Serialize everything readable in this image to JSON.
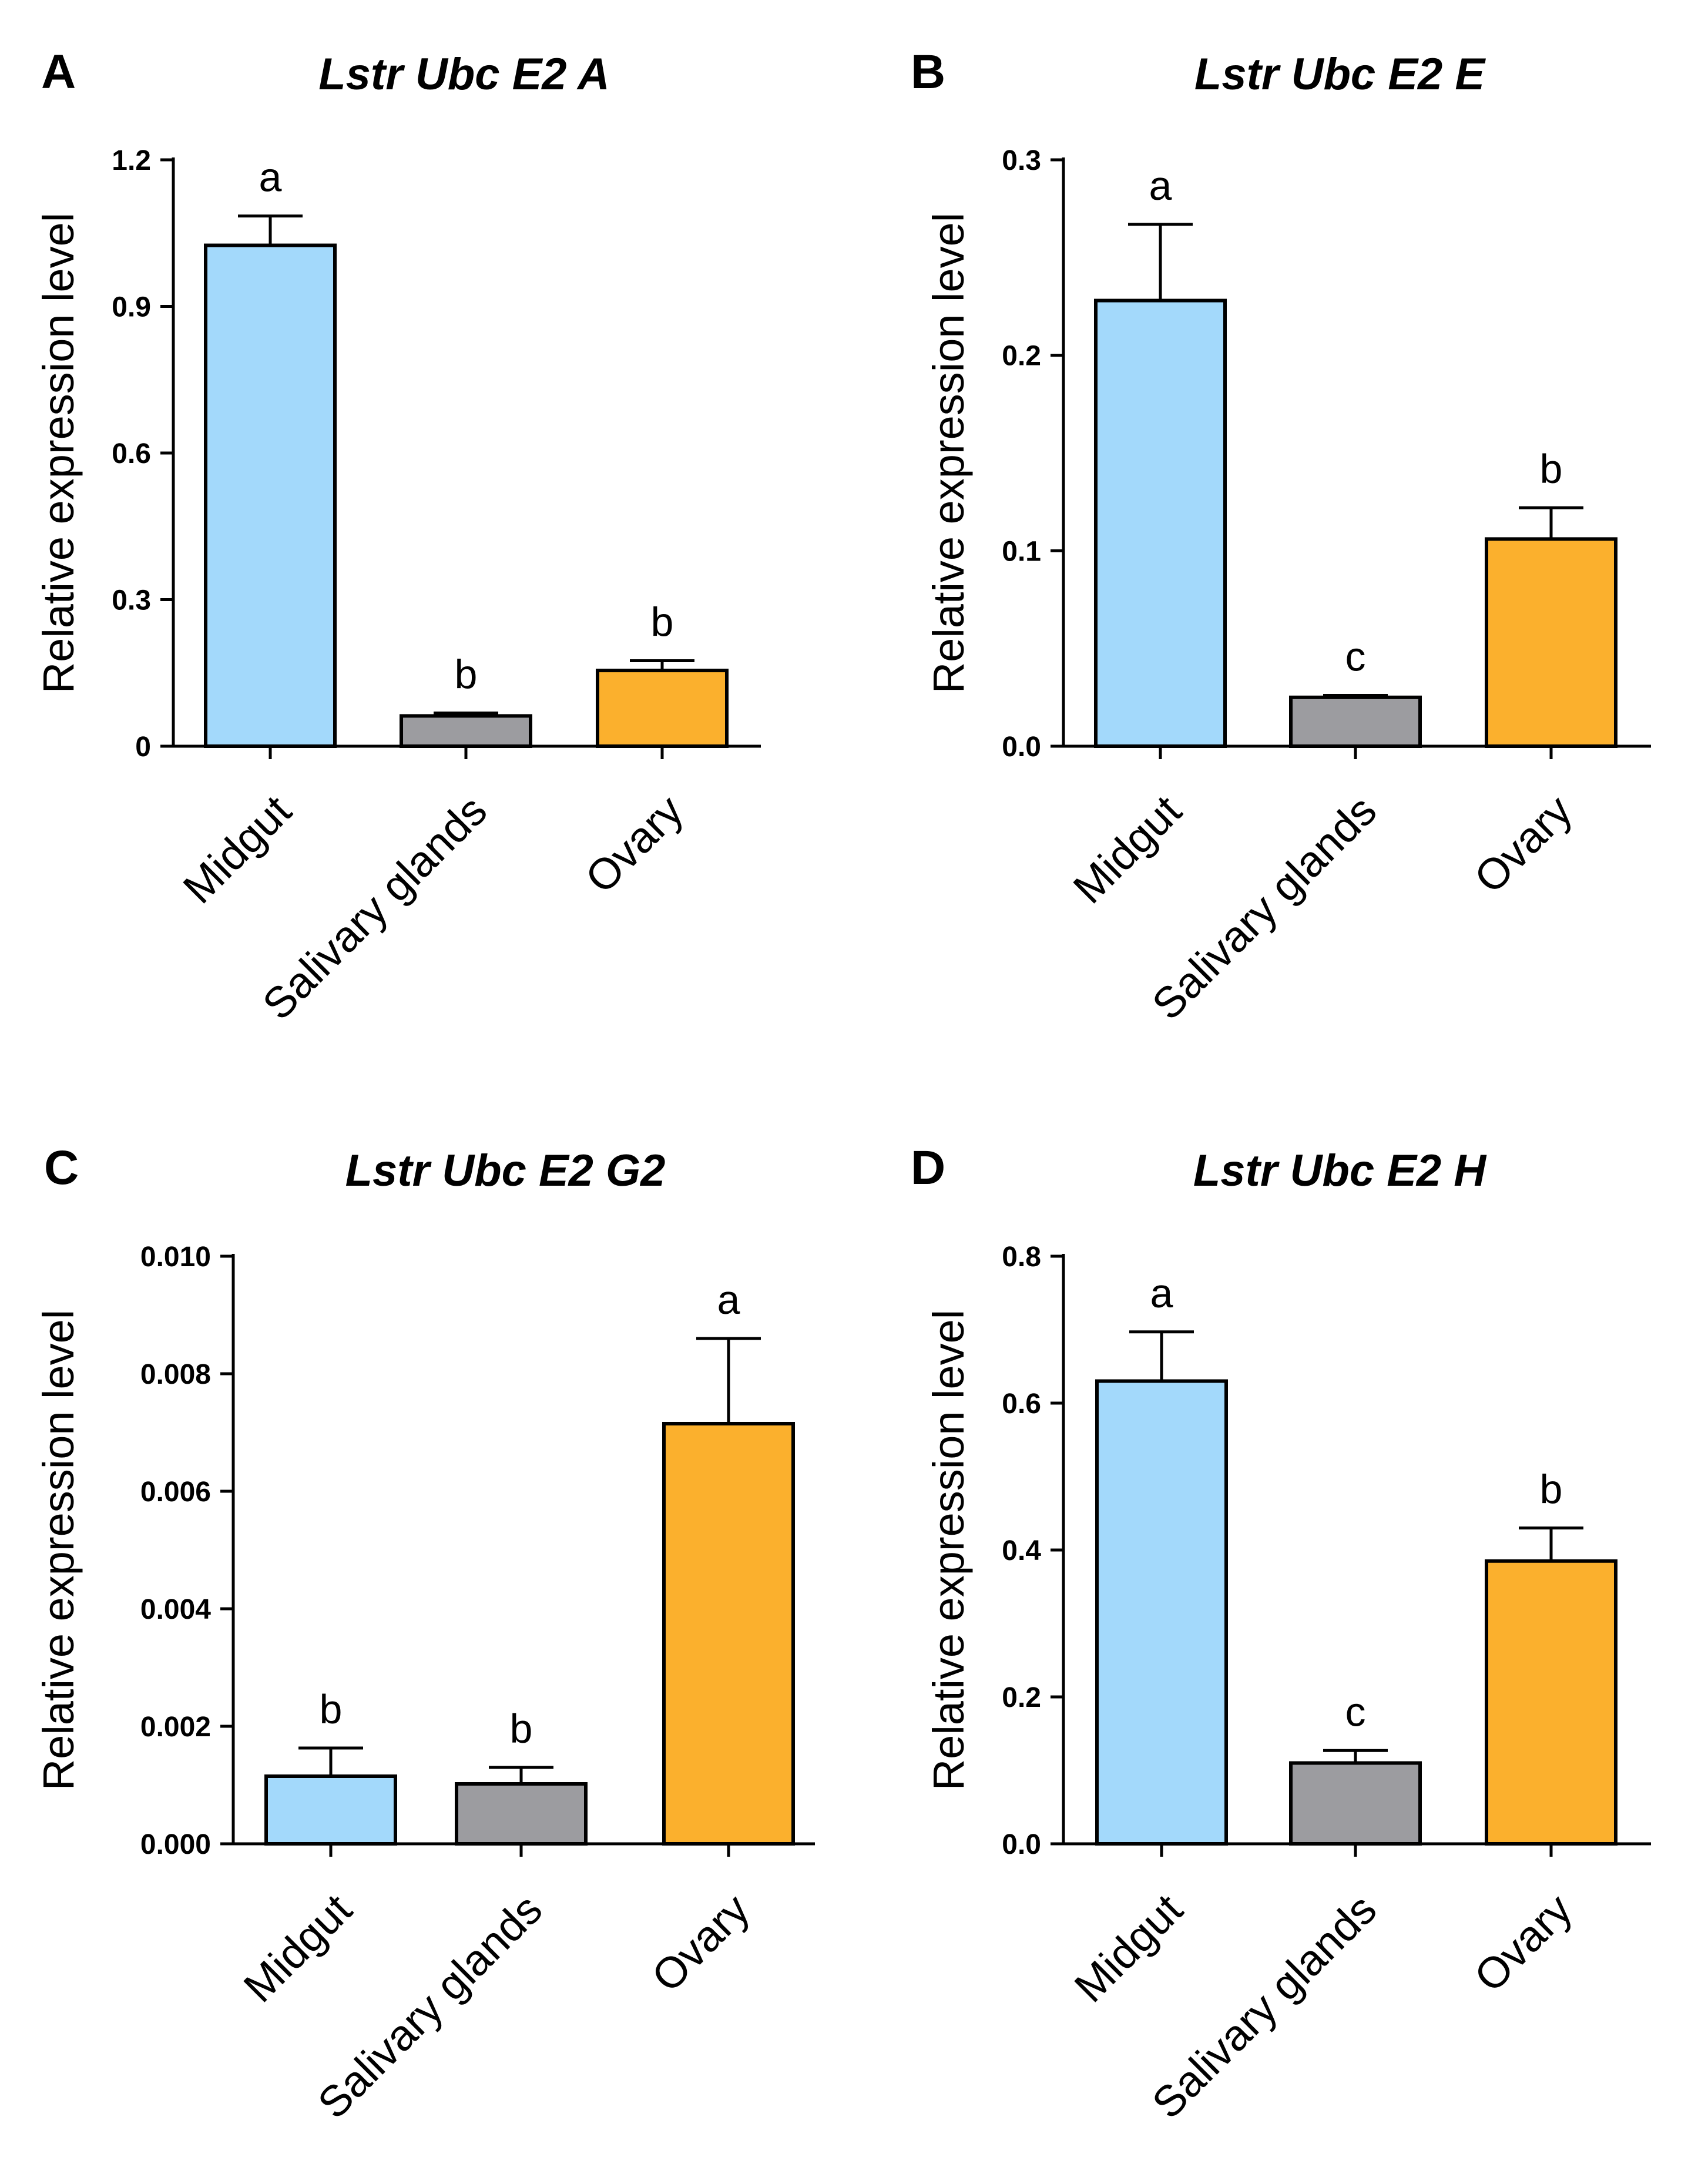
{
  "chart_data": [
    {
      "type": "bar",
      "panel": "A",
      "title": "Lstr Ubc E2 A",
      "xlabel": "",
      "ylabel": "Relative expression level",
      "ylim": [
        0,
        1.2
      ],
      "yticks": [
        "0",
        "0.3",
        "0.6",
        "0.9",
        "1.2"
      ],
      "ytick_values": [
        0,
        0.3,
        0.6,
        0.9,
        1.2
      ],
      "categories": [
        "Midgut",
        "Salivary glands",
        "Ovary"
      ],
      "values": [
        1.025,
        0.062,
        0.155
      ],
      "errors": [
        0.06,
        0.006,
        0.02
      ],
      "significance": [
        "a",
        "b",
        "b"
      ],
      "colors": [
        "#a3d9fb",
        "#9c9ca0",
        "#fbb02d"
      ]
    },
    {
      "type": "bar",
      "panel": "B",
      "title": "Lstr Ubc E2 E",
      "xlabel": "",
      "ylabel": "Relative expression level",
      "ylim": [
        0,
        0.3
      ],
      "yticks": [
        "0.0",
        "0.1",
        "0.2",
        "0.3"
      ],
      "ytick_values": [
        0,
        0.1,
        0.2,
        0.3
      ],
      "categories": [
        "Midgut",
        "Salivary glands",
        "Ovary"
      ],
      "values": [
        0.228,
        0.025,
        0.106
      ],
      "errors": [
        0.039,
        0.001,
        0.016
      ],
      "significance": [
        "a",
        "c",
        "b"
      ],
      "colors": [
        "#a3d9fb",
        "#9c9ca0",
        "#fbb02d"
      ]
    },
    {
      "type": "bar",
      "panel": "C",
      "title": "Lstr Ubc E2 G2",
      "xlabel": "",
      "ylabel": "Relative expression level",
      "ylim": [
        0,
        0.01
      ],
      "yticks": [
        "0.000",
        "0.002",
        "0.004",
        "0.006",
        "0.008",
        "0.010"
      ],
      "ytick_values": [
        0,
        0.002,
        0.004,
        0.006,
        0.008,
        0.01
      ],
      "categories": [
        "Midgut",
        "Salivary glands",
        "Ovary"
      ],
      "values": [
        0.00115,
        0.00102,
        0.00715
      ],
      "errors": [
        0.00048,
        0.00028,
        0.00145
      ],
      "significance": [
        "b",
        "b",
        "a"
      ],
      "colors": [
        "#a3d9fb",
        "#9c9ca0",
        "#fbb02d"
      ]
    },
    {
      "type": "bar",
      "panel": "D",
      "title": "Lstr Ubc E2 H",
      "xlabel": "",
      "ylabel": "Relative expression level",
      "ylim": [
        0,
        0.8
      ],
      "yticks": [
        "0.0",
        "0.2",
        "0.4",
        "0.6",
        "0.8"
      ],
      "ytick_values": [
        0,
        0.2,
        0.4,
        0.6,
        0.8
      ],
      "categories": [
        "Midgut",
        "Salivary glands",
        "Ovary"
      ],
      "values": [
        0.63,
        0.11,
        0.385
      ],
      "errors": [
        0.067,
        0.017,
        0.045
      ],
      "significance": [
        "a",
        "c",
        "b"
      ],
      "colors": [
        "#a3d9fb",
        "#9c9ca0",
        "#fbb02d"
      ]
    }
  ]
}
